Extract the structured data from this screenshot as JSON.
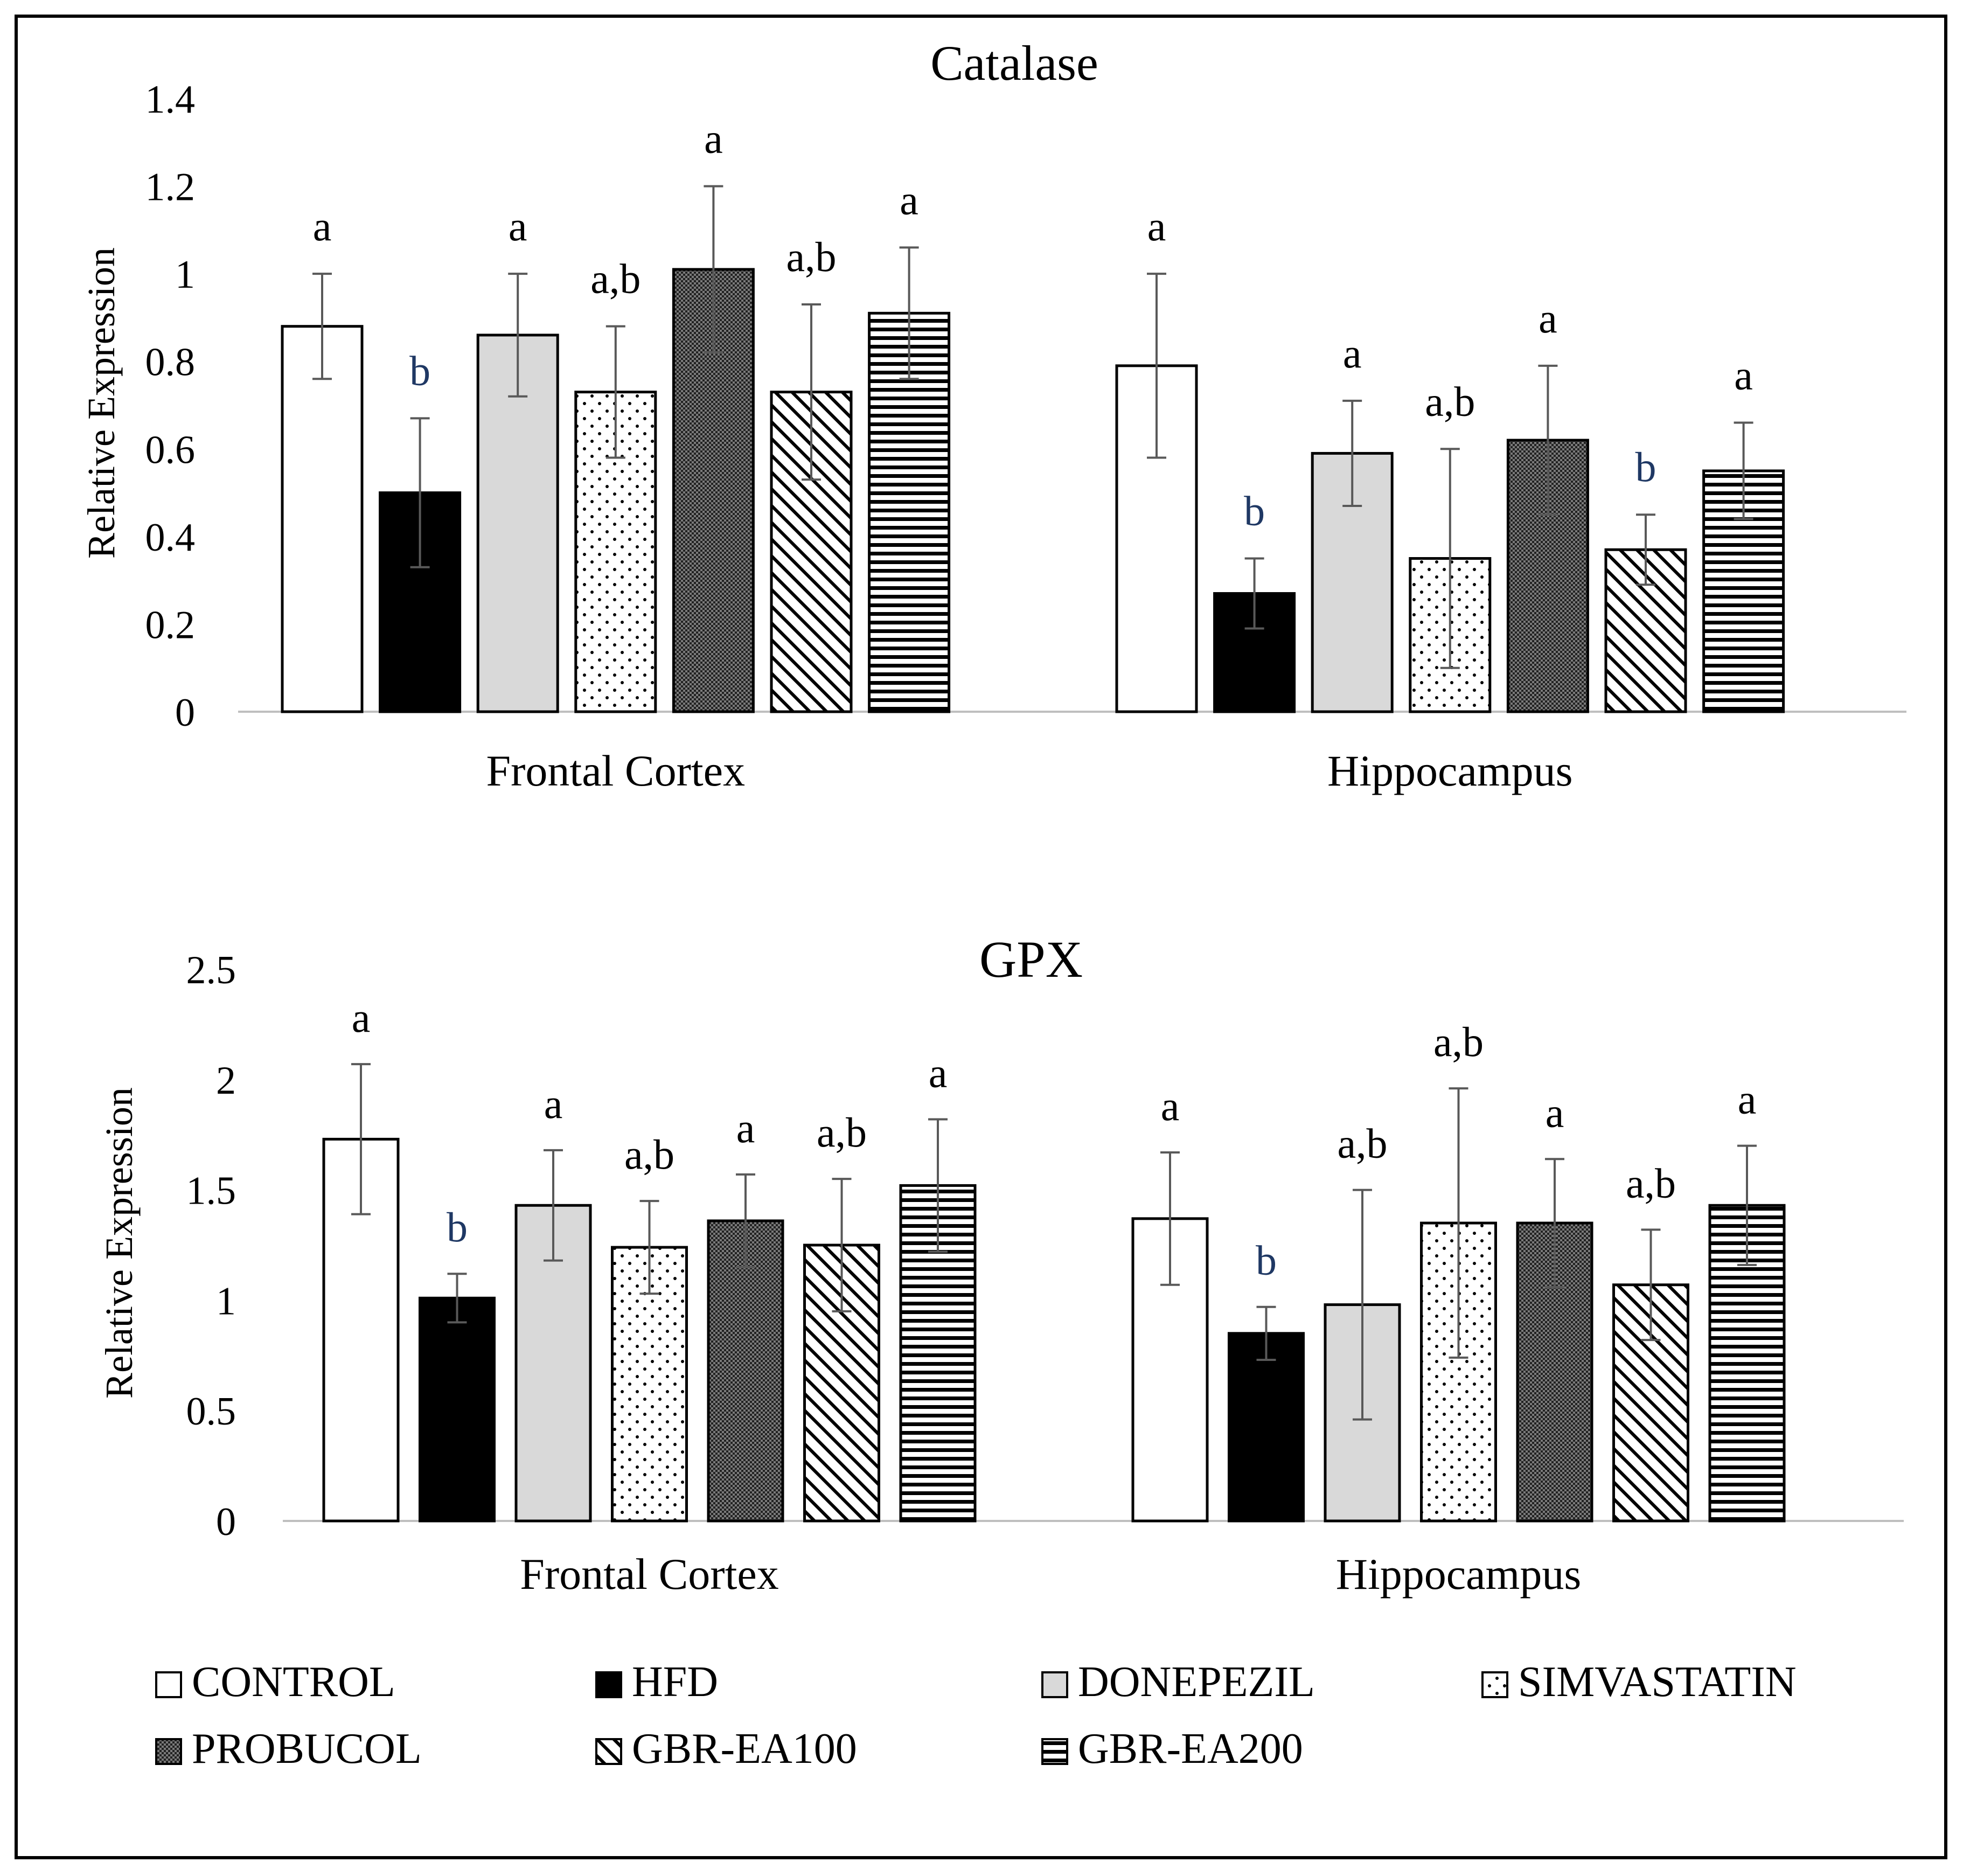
{
  "legend": {
    "placement": "bottom",
    "series": [
      {
        "label": "CONTROL",
        "pattern": "open"
      },
      {
        "label": "HFD",
        "pattern": "solid-black"
      },
      {
        "label": "DONEPEZIL",
        "pattern": "solid-grey"
      },
      {
        "label": "SIMVASTATIN",
        "pattern": "dotted"
      },
      {
        "label": "PROBUCOL",
        "pattern": "crosshatch"
      },
      {
        "label": "GBR-EA100",
        "pattern": "diagonal"
      },
      {
        "label": "GBR-EA200",
        "pattern": "horizontal"
      }
    ]
  },
  "colors": {
    "ink": "#000000",
    "axis": "#bfbfbf",
    "grey_fill": "#d9d9d9",
    "error_bar": "#595959",
    "border": "#000000"
  },
  "chart_data": [
    {
      "type": "bar",
      "title": "Catalase",
      "xlabel": "",
      "ylabel": "Relative Expression",
      "ylim": [
        0,
        1.4
      ],
      "yticks": [
        "0",
        "0.2",
        "0.4",
        "0.6",
        "0.8",
        "1",
        "1.2",
        "1.4"
      ],
      "grid": false,
      "categories": [
        "Frontal Cortex",
        "Hippocampus"
      ],
      "series": [
        {
          "name": "CONTROL",
          "values": [
            0.88,
            0.79
          ],
          "errors": [
            0.12,
            0.21
          ],
          "letters": [
            "a",
            "a"
          ]
        },
        {
          "name": "HFD",
          "values": [
            0.5,
            0.27
          ],
          "errors": [
            0.17,
            0.08
          ],
          "letters": [
            "b",
            "b"
          ]
        },
        {
          "name": "DONEPEZIL",
          "values": [
            0.86,
            0.59
          ],
          "errors": [
            0.14,
            0.12
          ],
          "letters": [
            "a",
            "a"
          ]
        },
        {
          "name": "SIMVASTATIN",
          "values": [
            0.73,
            0.35
          ],
          "errors": [
            0.15,
            0.25
          ],
          "letters": [
            "a,b",
            "a,b"
          ]
        },
        {
          "name": "PROBUCOL",
          "values": [
            1.01,
            0.62
          ],
          "errors": [
            0.19,
            0.17
          ],
          "letters": [
            "a",
            "a"
          ]
        },
        {
          "name": "GBR-EA100",
          "values": [
            0.73,
            0.37
          ],
          "errors": [
            0.2,
            0.08
          ],
          "letters": [
            "a,b",
            "b"
          ]
        },
        {
          "name": "GBR-EA200",
          "values": [
            0.91,
            0.55
          ],
          "errors": [
            0.15,
            0.11
          ],
          "letters": [
            "a",
            "a"
          ]
        }
      ]
    },
    {
      "type": "bar",
      "title": "GPX",
      "xlabel": "",
      "ylabel": "Relative Expression",
      "ylim": [
        0,
        2.5
      ],
      "yticks": [
        "0",
        "0.5",
        "1",
        "1.5",
        "2",
        "2.5"
      ],
      "grid": false,
      "categories": [
        "Frontal Cortex",
        "Hippocampus"
      ],
      "series": [
        {
          "name": "CONTROL",
          "values": [
            1.73,
            1.37
          ],
          "errors": [
            0.34,
            0.3
          ],
          "letters": [
            "a",
            "a"
          ]
        },
        {
          "name": "HFD",
          "values": [
            1.01,
            0.85
          ],
          "errors": [
            0.11,
            0.12
          ],
          "letters": [
            "b",
            "b"
          ]
        },
        {
          "name": "DONEPEZIL",
          "values": [
            1.43,
            0.98
          ],
          "errors": [
            0.25,
            0.52
          ],
          "letters": [
            "a",
            "a,b"
          ]
        },
        {
          "name": "SIMVASTATIN",
          "values": [
            1.24,
            1.35
          ],
          "errors": [
            0.21,
            0.61
          ],
          "letters": [
            "a,b",
            "a,b"
          ]
        },
        {
          "name": "PROBUCOL",
          "values": [
            1.36,
            1.35
          ],
          "errors": [
            0.21,
            0.29
          ],
          "letters": [
            "a",
            "a"
          ]
        },
        {
          "name": "GBR-EA100",
          "values": [
            1.25,
            1.07
          ],
          "errors": [
            0.3,
            0.25
          ],
          "letters": [
            "a,b",
            "a,b"
          ]
        },
        {
          "name": "GBR-EA200",
          "values": [
            1.52,
            1.43
          ],
          "errors": [
            0.3,
            0.27
          ],
          "letters": [
            "a",
            "a"
          ]
        }
      ]
    }
  ]
}
